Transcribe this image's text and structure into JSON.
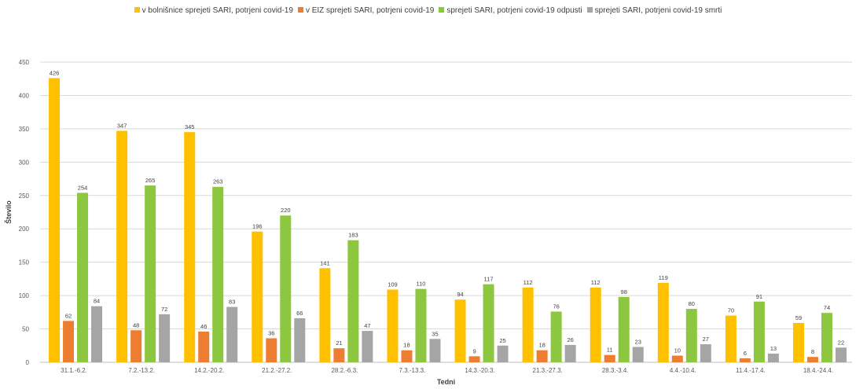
{
  "chart_data": {
    "type": "bar",
    "title": "",
    "xlabel": "Tedni",
    "ylabel": "Število",
    "ylim": [
      0,
      450
    ],
    "yticks": [
      0,
      50,
      100,
      150,
      200,
      250,
      300,
      350,
      400,
      450
    ],
    "grid": true,
    "legend_position": "top",
    "categories": [
      "31.1.-6.2.",
      "7.2.-13.2.",
      "14.2.-20.2.",
      "21.2.-27.2.",
      "28.2.-6.3.",
      "7.3.-13.3.",
      "14.3.-20.3.",
      "21.3.-27.3.",
      "28.3.-3.4.",
      "4.4.-10.4.",
      "11.4.-17.4.",
      "18.4.-24.4."
    ],
    "series": [
      {
        "name": "v bolnišnice sprejeti SARI, potrjeni covid-19",
        "color": "#FFC000",
        "values": [
          426,
          347,
          345,
          196,
          141,
          109,
          94,
          112,
          112,
          119,
          70,
          59
        ]
      },
      {
        "name": "v EIZ sprejeti SARI, potrjeni covid-19",
        "color": "#ED7D31",
        "values": [
          62,
          48,
          46,
          36,
          21,
          18,
          9,
          18,
          11,
          10,
          6,
          8
        ]
      },
      {
        "name": "sprejeti SARI, potrjeni covid-19 odpusti",
        "color": "#8DC63F",
        "values": [
          254,
          265,
          263,
          220,
          183,
          110,
          117,
          76,
          98,
          80,
          91,
          74
        ]
      },
      {
        "name": "sprejeti SARI, potrjeni covid-19 smrti",
        "color": "#A5A5A5",
        "values": [
          84,
          72,
          83,
          66,
          47,
          35,
          25,
          26,
          23,
          27,
          13,
          22
        ]
      }
    ]
  }
}
